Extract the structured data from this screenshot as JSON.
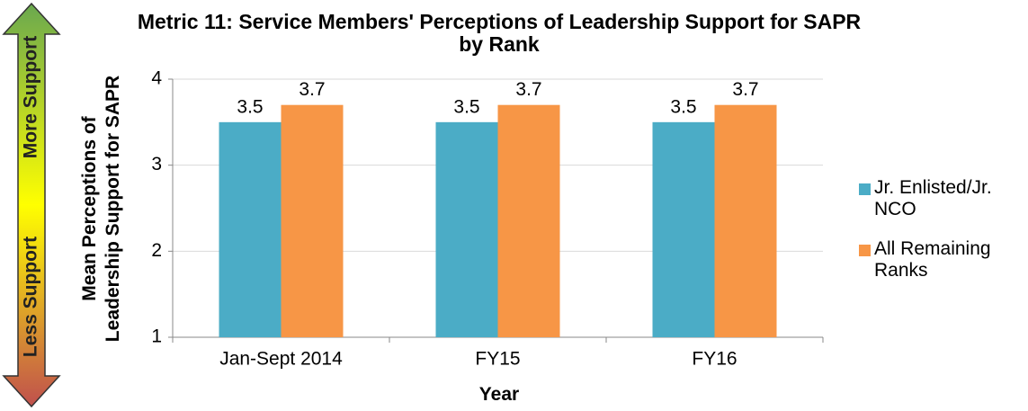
{
  "chart_data": {
    "type": "bar",
    "title": "Metric 11: Service Members' Perceptions of Leadership Support for SAPR by Rank",
    "x_label": "Year",
    "y_label": "Mean Perceptions of Leadership Support for SAPR",
    "annotations": [
      "More Support",
      "Less Support"
    ],
    "categories": [
      "Jan-Sept 2014",
      "FY15",
      "FY16"
    ],
    "series": [
      {
        "name": "Jr. Enlisted/Jr. NCO",
        "color": "#4bacc6",
        "values": [
          3.5,
          3.5,
          3.5
        ]
      },
      {
        "name": "All Remaining Ranks",
        "color": "#f79646",
        "values": [
          3.7,
          3.7,
          3.7
        ]
      }
    ],
    "ylim": [
      1,
      4
    ],
    "yticks": [
      1,
      2,
      3,
      4
    ],
    "grid": true,
    "legend": "right"
  }
}
